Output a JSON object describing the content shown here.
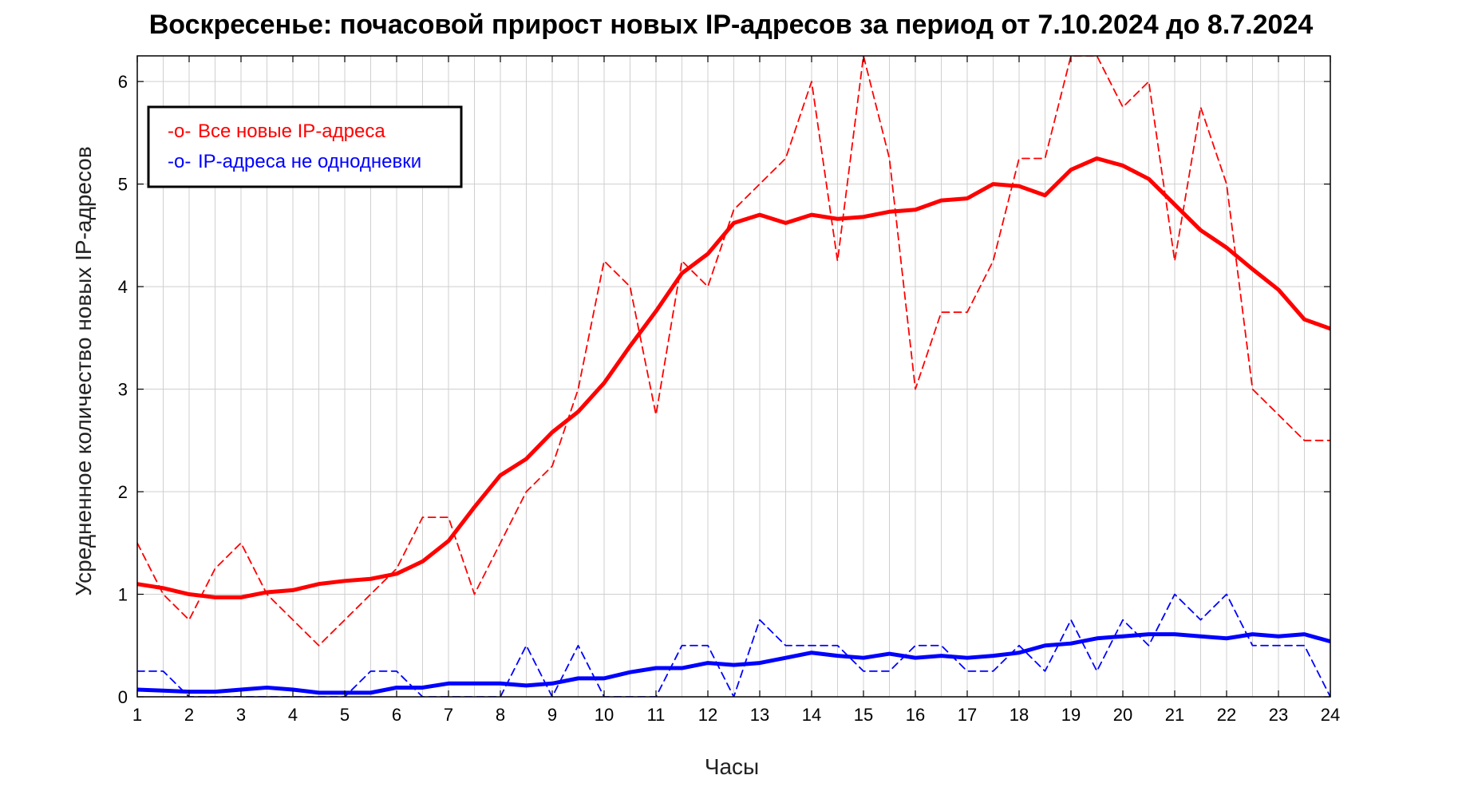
{
  "chart_data": {
    "type": "line",
    "title": "Воскресенье: почасовой прирост новых IP-адресов за период от 7.10.2024 до 8.7.2024",
    "xlabel": "Часы",
    "ylabel": "Усредненное количество новых IP-адресов",
    "xlim": [
      1,
      24
    ],
    "ylim": [
      0,
      6.25
    ],
    "xticks": [
      "1",
      "2",
      "3",
      "4",
      "5",
      "6",
      "7",
      "8",
      "9",
      "10",
      "11",
      "12",
      "13",
      "14",
      "15",
      "16",
      "17",
      "18",
      "19",
      "20",
      "21",
      "22",
      "23",
      "24"
    ],
    "yticks": [
      "0",
      "1",
      "2",
      "3",
      "4",
      "5",
      "6"
    ],
    "grid": true,
    "legend_position": "top-left",
    "colors": {
      "red": "#ff0000",
      "blue": "#0000ff"
    },
    "x": [
      1,
      1.5,
      2,
      2.5,
      3,
      3.5,
      4,
      4.5,
      5,
      5.5,
      6,
      6.5,
      7,
      7.5,
      8,
      8.5,
      9,
      9.5,
      10,
      10.5,
      11,
      11.5,
      12,
      12.5,
      13,
      13.5,
      14,
      14.5,
      15,
      15.5,
      16,
      16.5,
      17,
      17.5,
      18,
      18.5,
      19,
      19.5,
      20,
      20.5,
      21,
      21.5,
      22,
      22.5,
      23,
      23.5,
      24
    ],
    "series": [
      {
        "name": "Все новые IP-адреса",
        "color": "#ff0000",
        "style": "dashed",
        "legend_marker": "-o-",
        "values": [
          1.5,
          1.0,
          0.75,
          1.25,
          1.5,
          1.0,
          0.75,
          0.5,
          0.75,
          1.0,
          1.25,
          1.75,
          1.75,
          1.0,
          1.5,
          2.0,
          2.25,
          3.0,
          4.25,
          4.0,
          2.75,
          4.25,
          4.0,
          4.75,
          5.0,
          5.25,
          6.0,
          4.25,
          6.25,
          5.25,
          3.0,
          3.75,
          3.75,
          4.25,
          5.25,
          5.25,
          6.25,
          6.25,
          5.75,
          6.0,
          4.25,
          5.75,
          5.0,
          3.0,
          2.75,
          2.5,
          2.5
        ]
      },
      {
        "name": "IP-адреса не однодневки",
        "color": "#0000ff",
        "style": "dashed",
        "legend_marker": "-o-",
        "values": [
          0.25,
          0.25,
          0.0,
          0.0,
          0.0,
          0.0,
          0.0,
          0.0,
          0.0,
          0.25,
          0.25,
          0.0,
          0.0,
          0.0,
          0.0,
          0.5,
          0.0,
          0.5,
          0.0,
          0.0,
          0.0,
          0.5,
          0.5,
          0.0,
          0.75,
          0.5,
          0.5,
          0.5,
          0.25,
          0.25,
          0.5,
          0.5,
          0.25,
          0.25,
          0.5,
          0.25,
          0.75,
          0.25,
          0.75,
          0.5,
          1.0,
          0.75,
          1.0,
          0.5,
          0.5,
          0.5,
          0.0
        ]
      },
      {
        "color": "#ff0000",
        "style": "solid",
        "values": [
          1.1,
          1.06,
          1.0,
          0.97,
          0.97,
          1.02,
          1.04,
          1.1,
          1.13,
          1.15,
          1.2,
          1.32,
          1.52,
          1.85,
          2.16,
          2.32,
          2.58,
          2.78,
          3.06,
          3.42,
          3.76,
          4.13,
          4.32,
          4.62,
          4.7,
          4.62,
          4.7,
          4.66,
          4.68,
          4.73,
          4.75,
          4.84,
          4.86,
          5.0,
          4.98,
          4.89,
          5.14,
          5.25,
          5.18,
          5.05,
          4.8,
          4.55,
          4.38,
          4.17,
          3.97,
          3.68,
          3.59
        ]
      },
      {
        "color": "#0000ff",
        "style": "solid",
        "values": [
          0.07,
          0.06,
          0.05,
          0.05,
          0.07,
          0.09,
          0.07,
          0.04,
          0.04,
          0.04,
          0.09,
          0.09,
          0.13,
          0.13,
          0.13,
          0.11,
          0.13,
          0.18,
          0.18,
          0.24,
          0.28,
          0.28,
          0.33,
          0.31,
          0.33,
          0.38,
          0.43,
          0.4,
          0.38,
          0.42,
          0.38,
          0.4,
          0.38,
          0.4,
          0.43,
          0.5,
          0.52,
          0.57,
          0.59,
          0.61,
          0.61,
          0.59,
          0.57,
          0.61,
          0.59,
          0.61,
          0.54
        ]
      }
    ]
  }
}
